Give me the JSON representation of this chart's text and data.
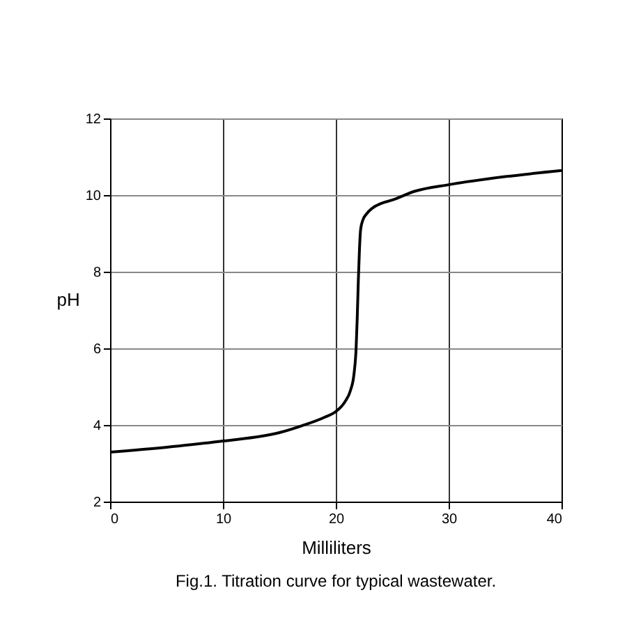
{
  "chart_data": {
    "type": "line",
    "xlabel": "Milliliters",
    "ylabel": "pH",
    "annotations": [
      "Fig.1. Titration curve for typical wastewater."
    ],
    "series": [
      {
        "color": "#000000",
        "x": [
          0,
          5,
          10,
          15,
          17,
          19,
          20,
          20.8,
          21.3,
          21.6,
          21.8,
          21.9,
          22.0,
          22.1,
          22.2,
          22.4,
          22.7,
          23.2,
          24,
          25,
          27,
          30,
          35,
          40
        ],
        "values": [
          3.29,
          3.42,
          3.58,
          3.8,
          3.98,
          4.2,
          4.35,
          4.6,
          4.9,
          5.3,
          6.0,
          6.8,
          7.8,
          8.6,
          9.1,
          9.35,
          9.5,
          9.65,
          9.78,
          9.87,
          10.1,
          10.27,
          10.48,
          10.64
        ]
      }
    ],
    "xlim": [
      0,
      40
    ],
    "xticks": [
      0,
      10,
      20,
      30,
      40
    ],
    "ylim": [
      2,
      12
    ],
    "yticks": [
      2,
      4,
      6,
      8,
      10,
      12
    ],
    "grid": true,
    "marker": "none",
    "line_style": "solid"
  }
}
